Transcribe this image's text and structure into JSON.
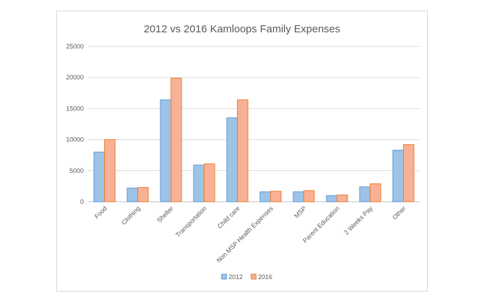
{
  "chart_data": {
    "type": "bar",
    "title": "2012 vs 2016 Kamloops Family Expenses",
    "categories": [
      "Food",
      "Clothing",
      "Shelter",
      "Transportation",
      "Child care",
      "Non MSP Health Expenses",
      "MSP",
      "Parent Education",
      "2 Weeks Pay",
      "Other"
    ],
    "series": [
      {
        "name": "2012",
        "values": [
          8000,
          2200,
          16400,
          5900,
          13500,
          1600,
          1600,
          1000,
          2400,
          8300
        ],
        "color": "#9dc3e6",
        "stroke": "#5b9bd5"
      },
      {
        "name": "2016",
        "values": [
          10000,
          2300,
          19900,
          6100,
          16400,
          1700,
          1800,
          1100,
          2900,
          9200
        ],
        "color": "#f8b195",
        "stroke": "#ed7d31"
      }
    ],
    "ylim": [
      0,
      25000
    ],
    "yticks": [
      "0",
      "5000",
      "10000",
      "15000",
      "20000",
      "25000"
    ],
    "grid": true,
    "legend": "bottom"
  }
}
